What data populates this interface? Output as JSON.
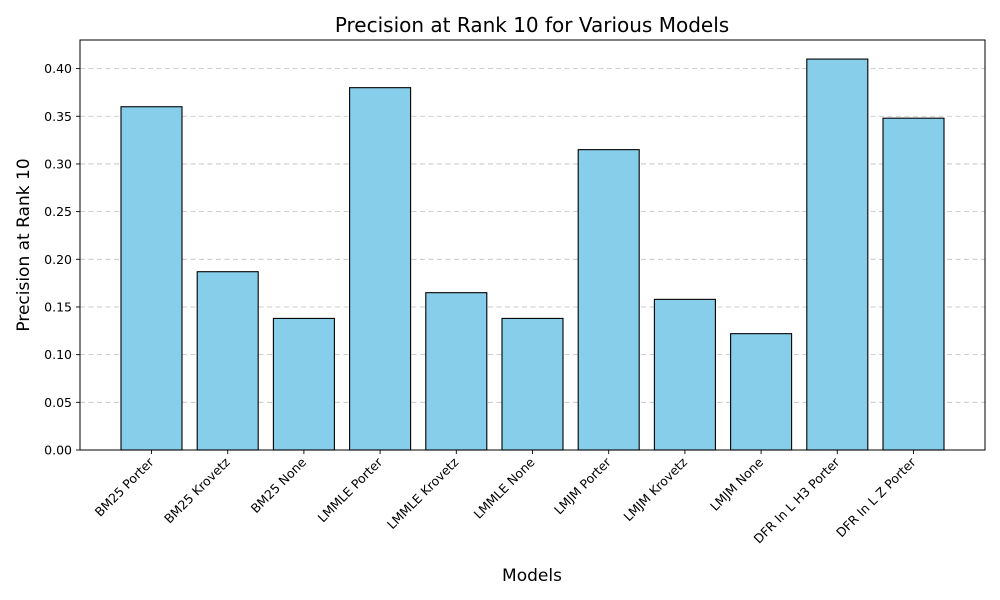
{
  "chart_data": {
    "type": "bar",
    "title": "Precision at Rank 10 for Various Models",
    "xlabel": "Models",
    "ylabel": "Precision at Rank 10",
    "categories": [
      "BM25 Porter",
      "BM25 Krovetz",
      "BM25 None",
      "LMMLE Porter",
      "LMMLE Krovetz",
      "LMMLE None",
      "LMJM Porter",
      "LMJM Krovetz",
      "LMJM None",
      "DFR In L H3 Porter",
      "DFR In L Z Porter"
    ],
    "values": [
      0.36,
      0.187,
      0.138,
      0.38,
      0.165,
      0.138,
      0.315,
      0.158,
      0.122,
      0.41,
      0.348
    ],
    "ylim": [
      0,
      0.43
    ],
    "yticks": [
      "0.00",
      "0.05",
      "0.10",
      "0.15",
      "0.20",
      "0.25",
      "0.30",
      "0.35",
      "0.40"
    ],
    "grid": "y-dashed",
    "legend": "none",
    "colors": {
      "bar_fill": "#87ceeb",
      "bar_edge": "#000000",
      "grid": "#bfbfbf"
    }
  }
}
